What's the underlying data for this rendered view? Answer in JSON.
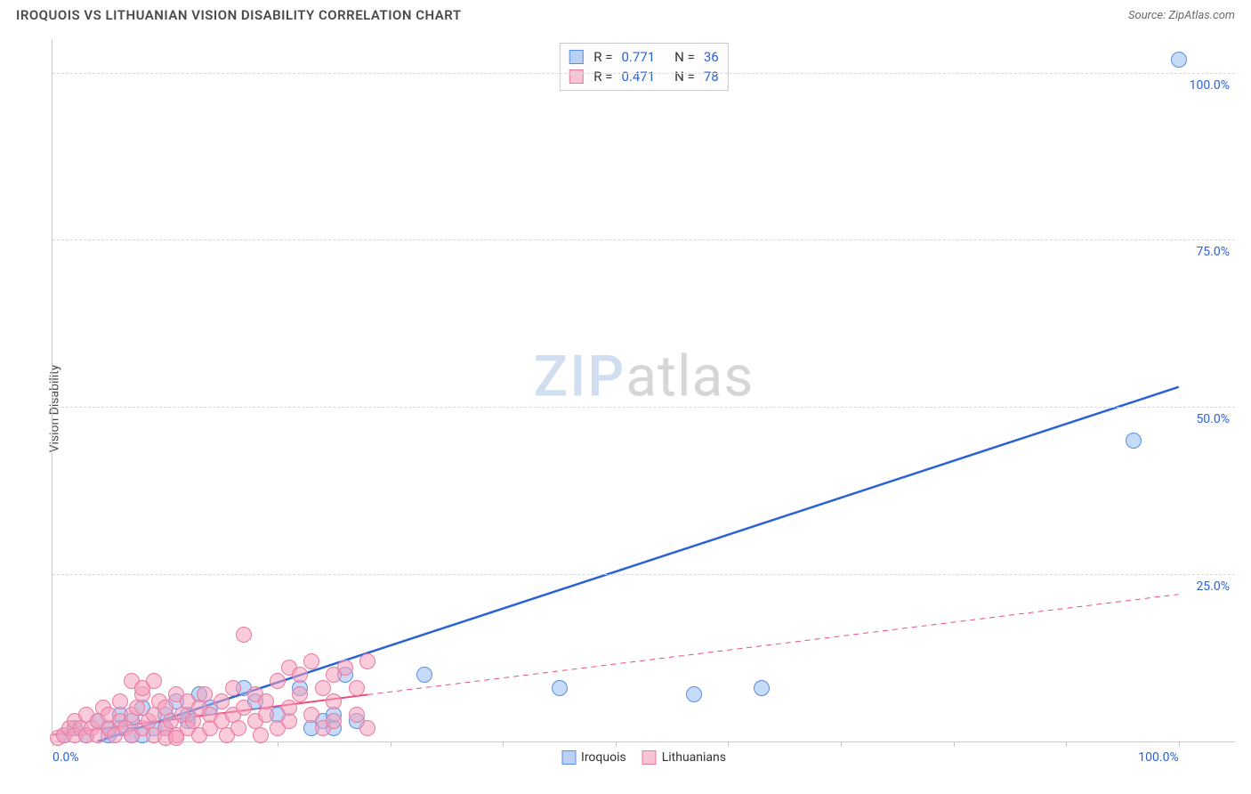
{
  "header": {
    "title": "IROQUOIS VS LITHUANIAN VISION DISABILITY CORRELATION CHART",
    "source_label": "Source: ZipAtlas.com"
  },
  "watermark": {
    "zip": "ZIP",
    "atlas": "atlas"
  },
  "chart": {
    "type": "scatter",
    "ylabel": "Vision Disability",
    "background_color": "#ffffff",
    "grid_color": "#d8d8d8",
    "axis_color": "#c8c8c8",
    "xlim": [
      0,
      105
    ],
    "ylim": [
      0,
      105
    ],
    "x_tick_positions": [
      0,
      10,
      20,
      30,
      40,
      50,
      60,
      70,
      80,
      90,
      100
    ],
    "y_grid_values": [
      25,
      50,
      75,
      100
    ],
    "x_axis_labels": [
      {
        "value": 0,
        "text": "0.0%",
        "align": "left",
        "color": "#2a62d4"
      },
      {
        "value": 100,
        "text": "100.0%",
        "align": "right",
        "color": "#2a62d4"
      }
    ],
    "y_axis_labels": [
      {
        "value": 25,
        "text": "25.0%",
        "color": "#2a62d4"
      },
      {
        "value": 50,
        "text": "50.0%",
        "color": "#2a62d4"
      },
      {
        "value": 75,
        "text": "75.0%",
        "color": "#2a62d4"
      },
      {
        "value": 100,
        "text": "100.0%",
        "color": "#2a62d4"
      }
    ],
    "legend_top": {
      "border_color": "#c8c8c8",
      "rows": [
        {
          "swatch_fill": "#b9d2f4",
          "swatch_border": "#5a8de0",
          "r_label": "R =",
          "r_value": "0.771",
          "r_color": "#2a62d4",
          "n_label": "N =",
          "n_value": "36",
          "n_color": "#2a62d4"
        },
        {
          "swatch_fill": "#f6c4d2",
          "swatch_border": "#e87aa0",
          "r_label": "R =",
          "r_value": "0.471",
          "r_color": "#2a62d4",
          "n_label": "N =",
          "n_value": "78",
          "n_color": "#2a62d4"
        }
      ]
    },
    "legend_bottom": {
      "items": [
        {
          "swatch_fill": "#b9d2f4",
          "swatch_border": "#5a8de0",
          "label": "Iroquois"
        },
        {
          "swatch_fill": "#f6c4d2",
          "swatch_border": "#e87aa0",
          "label": "Lithuanians"
        }
      ]
    },
    "series": [
      {
        "name": "Iroquois",
        "marker_fill": "rgba(150,190,240,0.55)",
        "marker_stroke": "#5a8de0",
        "marker_radius": 9,
        "trend": {
          "x1": 4,
          "y1": 0,
          "x2": 100,
          "y2": 53,
          "color": "#2a62d4",
          "width": 2.5,
          "dash": "none"
        },
        "trend_extend": null,
        "points": [
          [
            1,
            1
          ],
          [
            2,
            2
          ],
          [
            3,
            1
          ],
          [
            4,
            3
          ],
          [
            5,
            2
          ],
          [
            6,
            4
          ],
          [
            7,
            3
          ],
          [
            8,
            5
          ],
          [
            9,
            2
          ],
          [
            10,
            4
          ],
          [
            11,
            6
          ],
          [
            12,
            3
          ],
          [
            13,
            7
          ],
          [
            14,
            5
          ],
          [
            8,
            1
          ],
          [
            10,
            2
          ],
          [
            12,
            4
          ],
          [
            5,
            1
          ],
          [
            6,
            2
          ],
          [
            7,
            1
          ],
          [
            17,
            8
          ],
          [
            18,
            6
          ],
          [
            20,
            4
          ],
          [
            22,
            8
          ],
          [
            23,
            2
          ],
          [
            24,
            3
          ],
          [
            25,
            4
          ],
          [
            25,
            2
          ],
          [
            26,
            10
          ],
          [
            27,
            3
          ],
          [
            33,
            10
          ],
          [
            45,
            8
          ],
          [
            57,
            7
          ],
          [
            63,
            8
          ],
          [
            96,
            45
          ],
          [
            100,
            102
          ]
        ]
      },
      {
        "name": "Lithuanians",
        "marker_fill": "rgba(245,160,190,0.55)",
        "marker_stroke": "#e87aa0",
        "marker_radius": 9,
        "trend": {
          "x1": 0,
          "y1": 1,
          "x2": 28,
          "y2": 7,
          "color": "#ea4f78",
          "width": 2,
          "dash": "none"
        },
        "trend_extend": {
          "x1": 28,
          "y1": 7,
          "x2": 100,
          "y2": 22,
          "color": "#ea4f78",
          "width": 1,
          "dash": "6,5"
        },
        "points": [
          [
            0.5,
            0.5
          ],
          [
            1,
            1
          ],
          [
            1.5,
            2
          ],
          [
            2,
            1
          ],
          [
            2,
            3
          ],
          [
            2.5,
            2
          ],
          [
            3,
            1
          ],
          [
            3,
            4
          ],
          [
            3.5,
            2
          ],
          [
            4,
            3
          ],
          [
            4,
            1
          ],
          [
            4.5,
            5
          ],
          [
            5,
            2
          ],
          [
            5,
            4
          ],
          [
            5.5,
            1
          ],
          [
            6,
            3
          ],
          [
            6,
            6
          ],
          [
            6.5,
            2
          ],
          [
            7,
            4
          ],
          [
            7,
            1
          ],
          [
            7.5,
            5
          ],
          [
            8,
            2
          ],
          [
            8,
            7
          ],
          [
            8.5,
            3
          ],
          [
            9,
            1
          ],
          [
            9,
            4
          ],
          [
            9.5,
            6
          ],
          [
            10,
            2
          ],
          [
            10,
            5
          ],
          [
            10.5,
            3
          ],
          [
            11,
            7
          ],
          [
            11,
            1
          ],
          [
            11.5,
            4
          ],
          [
            12,
            2
          ],
          [
            12,
            6
          ],
          [
            12.5,
            3
          ],
          [
            13,
            5
          ],
          [
            13,
            1
          ],
          [
            13.5,
            7
          ],
          [
            14,
            2
          ],
          [
            14,
            4
          ],
          [
            7,
            9
          ],
          [
            8,
            8
          ],
          [
            9,
            9
          ],
          [
            15,
            3
          ],
          [
            15,
            6
          ],
          [
            15.5,
            1
          ],
          [
            16,
            4
          ],
          [
            16,
            8
          ],
          [
            16.5,
            2
          ],
          [
            17,
            5
          ],
          [
            17,
            16
          ],
          [
            18,
            3
          ],
          [
            18,
            7
          ],
          [
            18.5,
            1
          ],
          [
            19,
            4
          ],
          [
            19,
            6
          ],
          [
            20,
            2
          ],
          [
            20,
            9
          ],
          [
            21,
            3
          ],
          [
            21,
            5
          ],
          [
            21,
            11
          ],
          [
            22,
            7
          ],
          [
            22,
            10
          ],
          [
            23,
            4
          ],
          [
            23,
            12
          ],
          [
            24,
            2
          ],
          [
            24,
            8
          ],
          [
            25,
            6
          ],
          [
            25,
            10
          ],
          [
            25,
            3
          ],
          [
            26,
            11
          ],
          [
            27,
            4
          ],
          [
            27,
            8
          ],
          [
            28,
            2
          ],
          [
            28,
            12
          ],
          [
            10,
            0.5
          ],
          [
            11,
            0.5
          ]
        ]
      }
    ]
  }
}
